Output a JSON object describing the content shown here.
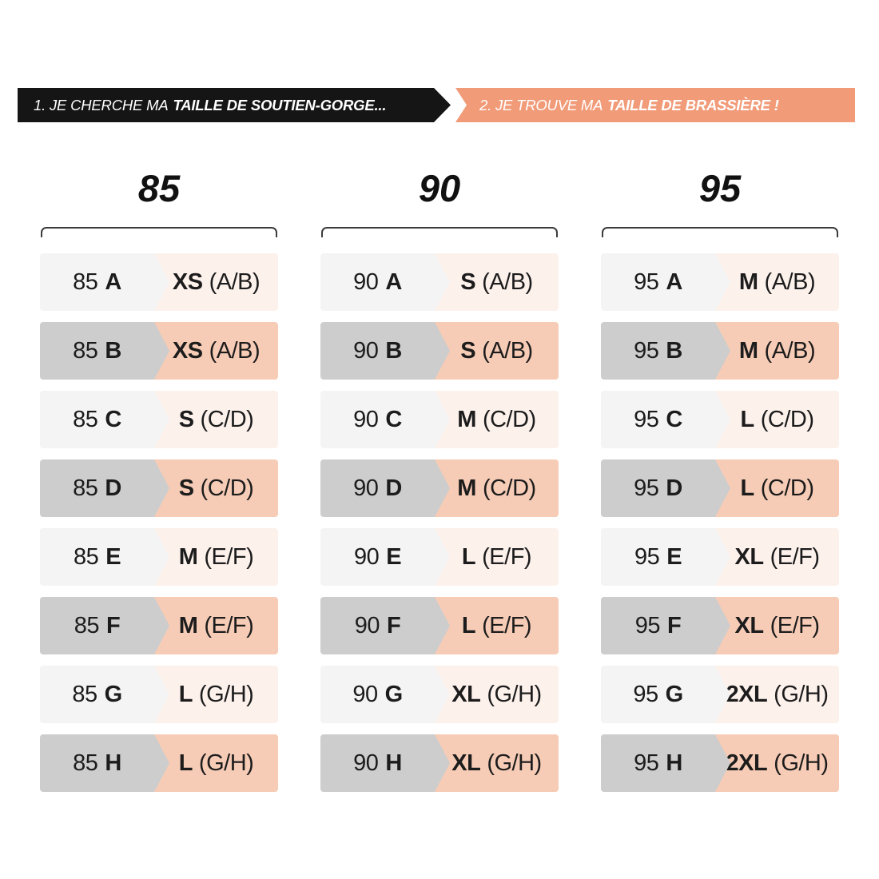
{
  "banners": {
    "step1": {
      "prefix": "1. JE CHERCHE MA",
      "bold": "TAILLE DE SOUTIEN-GORGE..."
    },
    "step2": {
      "prefix": "2. JE TROUVE MA",
      "bold": "TAILLE DE BRASSIÈRE !"
    }
  },
  "colors": {
    "banner_black": "#151515",
    "banner_salmon": "#f19b79",
    "row_gray_dark": "#cdcdcd",
    "row_salmon_dark": "#f7ccb6",
    "row_gray_light": "#f5f4f4",
    "row_salmon_light": "#fdf1ec",
    "bracket": "#3c3c3c",
    "text": "#1c1c1c"
  },
  "chart_data": {
    "type": "table",
    "title": "Correspondance taille de soutien-gorge vers taille de brassière",
    "columns": [
      {
        "header": "85",
        "rows": [
          {
            "band": "85",
            "cup": "A",
            "size": "XS",
            "range": "(A/B)"
          },
          {
            "band": "85",
            "cup": "B",
            "size": "XS",
            "range": "(A/B)"
          },
          {
            "band": "85",
            "cup": "C",
            "size": "S",
            "range": "(C/D)"
          },
          {
            "band": "85",
            "cup": "D",
            "size": "S",
            "range": "(C/D)"
          },
          {
            "band": "85",
            "cup": "E",
            "size": "M",
            "range": "(E/F)"
          },
          {
            "band": "85",
            "cup": "F",
            "size": "M",
            "range": "(E/F)"
          },
          {
            "band": "85",
            "cup": "G",
            "size": "L",
            "range": "(G/H)"
          },
          {
            "band": "85",
            "cup": "H",
            "size": "L",
            "range": "(G/H)"
          }
        ]
      },
      {
        "header": "90",
        "rows": [
          {
            "band": "90",
            "cup": "A",
            "size": "S",
            "range": "(A/B)"
          },
          {
            "band": "90",
            "cup": "B",
            "size": "S",
            "range": "(A/B)"
          },
          {
            "band": "90",
            "cup": "C",
            "size": "M",
            "range": "(C/D)"
          },
          {
            "band": "90",
            "cup": "D",
            "size": "M",
            "range": "(C/D)"
          },
          {
            "band": "90",
            "cup": "E",
            "size": "L",
            "range": "(E/F)"
          },
          {
            "band": "90",
            "cup": "F",
            "size": "L",
            "range": "(E/F)"
          },
          {
            "band": "90",
            "cup": "G",
            "size": "XL",
            "range": "(G/H)"
          },
          {
            "band": "90",
            "cup": "H",
            "size": "XL",
            "range": "(G/H)"
          }
        ]
      },
      {
        "header": "95",
        "rows": [
          {
            "band": "95",
            "cup": "A",
            "size": "M",
            "range": "(A/B)"
          },
          {
            "band": "95",
            "cup": "B",
            "size": "M",
            "range": "(A/B)"
          },
          {
            "band": "95",
            "cup": "C",
            "size": "L",
            "range": "(C/D)"
          },
          {
            "band": "95",
            "cup": "D",
            "size": "L",
            "range": "(C/D)"
          },
          {
            "band": "95",
            "cup": "E",
            "size": "XL",
            "range": "(E/F)"
          },
          {
            "band": "95",
            "cup": "F",
            "size": "XL",
            "range": "(E/F)"
          },
          {
            "band": "95",
            "cup": "G",
            "size": "2XL",
            "range": "(G/H)"
          },
          {
            "band": "95",
            "cup": "H",
            "size": "2XL",
            "range": "(G/H)"
          }
        ]
      }
    ]
  }
}
